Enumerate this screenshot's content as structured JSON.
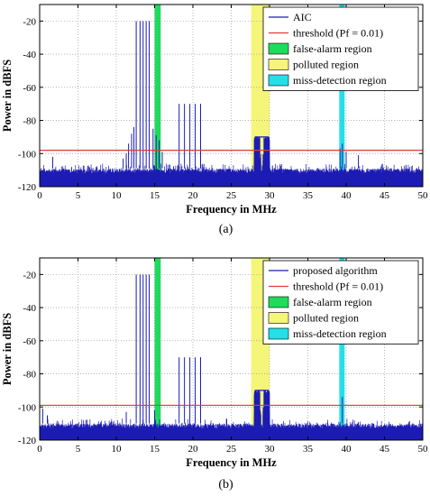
{
  "chart_data": [
    {
      "type": "line",
      "caption": "(a)",
      "xlabel": "Frequency in MHz",
      "ylabel": "Power in dBFS",
      "xlim": [
        0,
        50
      ],
      "ylim": [
        -120,
        -10
      ],
      "xticks": [
        0,
        5,
        10,
        15,
        20,
        25,
        30,
        35,
        40,
        45,
        50
      ],
      "yticks": [
        -120,
        -100,
        -80,
        -60,
        -40,
        -20
      ],
      "xtick_labels": [
        "0",
        "5",
        "10",
        "15",
        "20",
        "25",
        "30",
        "35",
        "40",
        "45",
        "50"
      ],
      "ytick_labels": [
        "-120",
        "-100",
        "-80",
        "-60",
        "-40",
        "-20"
      ],
      "grid": true,
      "legend_position": "top-right",
      "legend": [
        {
          "label": "AIC",
          "kind": "line",
          "color": "#1c1cb4"
        },
        {
          "label": "threshold (Pf = 0.01)",
          "kind": "line",
          "color": "#e03a3a"
        },
        {
          "label": "false-alarm region",
          "kind": "patch",
          "color": "#1fdb5c"
        },
        {
          "label": "polluted region",
          "kind": "patch",
          "color": "#f5f57a"
        },
        {
          "label": "miss-detection region",
          "kind": "patch",
          "color": "#22e0e8"
        }
      ],
      "threshold": -98,
      "noise_floor": [
        -120,
        -109
      ],
      "regions": [
        {
          "name": "false-alarm",
          "x": [
            15.0,
            15.8
          ],
          "color": "#1fdb5c"
        },
        {
          "name": "polluted",
          "x": [
            27.6,
            30.0
          ],
          "color": "#f5f57a"
        },
        {
          "name": "miss-detection",
          "x": [
            39.1,
            39.8
          ],
          "color": "#22e0e8"
        }
      ],
      "series": [
        {
          "name": "AIC",
          "color": "#1c1cb4",
          "spikes": [
            {
              "x": 1.7,
              "y": -102
            },
            {
              "x": 10.9,
              "y": -103
            },
            {
              "x": 11.3,
              "y": -100
            },
            {
              "x": 11.6,
              "y": -94
            },
            {
              "x": 12.0,
              "y": -88
            },
            {
              "x": 12.3,
              "y": -84
            },
            {
              "x": 12.6,
              "y": -20
            },
            {
              "x": 13.1,
              "y": -20
            },
            {
              "x": 13.5,
              "y": -20
            },
            {
              "x": 13.9,
              "y": -20
            },
            {
              "x": 14.3,
              "y": -20
            },
            {
              "x": 14.8,
              "y": -85
            },
            {
              "x": 15.2,
              "y": -89
            },
            {
              "x": 15.6,
              "y": -92
            },
            {
              "x": 16.0,
              "y": -99
            },
            {
              "x": 18.2,
              "y": -70
            },
            {
              "x": 18.9,
              "y": -70
            },
            {
              "x": 19.6,
              "y": -70
            },
            {
              "x": 20.3,
              "y": -70
            },
            {
              "x": 21.0,
              "y": -70
            },
            {
              "x": 39.2,
              "y": -97
            },
            {
              "x": 39.5,
              "y": -94
            },
            {
              "x": 40.0,
              "y": -99
            },
            {
              "x": 41.6,
              "y": -101
            }
          ],
          "hump": {
            "x": [
              28.0,
              30.0
            ],
            "y": -90,
            "dip_x": 29.0,
            "dip_y": -117
          }
        }
      ]
    },
    {
      "type": "line",
      "caption": "(b)",
      "xlabel": "Frequency in MHz",
      "ylabel": "Power in dBFS",
      "xlim": [
        0,
        50
      ],
      "ylim": [
        -120,
        -10
      ],
      "xticks": [
        0,
        5,
        10,
        15,
        20,
        25,
        30,
        35,
        40,
        45,
        50
      ],
      "yticks": [
        -120,
        -100,
        -80,
        -60,
        -40,
        -20
      ],
      "xtick_labels": [
        "0",
        "5",
        "10",
        "15",
        "20",
        "25",
        "30",
        "35",
        "40",
        "45",
        "50"
      ],
      "ytick_labels": [
        "-120",
        "-100",
        "-80",
        "-60",
        "-40",
        "-20"
      ],
      "grid": true,
      "legend_position": "top-right",
      "legend": [
        {
          "label": "proposed algorithm",
          "kind": "line",
          "color": "#1c1cb4"
        },
        {
          "label": "threshold (Pf = 0.01)",
          "kind": "line",
          "color": "#e03a3a"
        },
        {
          "label": "false-alarm region",
          "kind": "patch",
          "color": "#1fdb5c"
        },
        {
          "label": "polluted region",
          "kind": "patch",
          "color": "#f5f57a"
        },
        {
          "label": "miss-detection region",
          "kind": "patch",
          "color": "#22e0e8"
        }
      ],
      "threshold": -99,
      "noise_floor": [
        -120,
        -110
      ],
      "regions": [
        {
          "name": "false-alarm",
          "x": [
            15.0,
            15.8
          ],
          "color": "#1fdb5c"
        },
        {
          "name": "polluted",
          "x": [
            27.6,
            30.0
          ],
          "color": "#f5f57a"
        },
        {
          "name": "miss-detection",
          "x": [
            39.1,
            39.8
          ],
          "color": "#22e0e8"
        }
      ],
      "series": [
        {
          "name": "proposed algorithm",
          "color": "#1c1cb4",
          "spikes": [
            {
              "x": 0.4,
              "y": -101
            },
            {
              "x": 1.0,
              "y": -105
            },
            {
              "x": 11.3,
              "y": -103
            },
            {
              "x": 12.6,
              "y": -20
            },
            {
              "x": 13.1,
              "y": -20
            },
            {
              "x": 13.5,
              "y": -20
            },
            {
              "x": 13.9,
              "y": -20
            },
            {
              "x": 14.3,
              "y": -20
            },
            {
              "x": 15.0,
              "y": -102
            },
            {
              "x": 18.2,
              "y": -70
            },
            {
              "x": 18.9,
              "y": -70
            },
            {
              "x": 19.6,
              "y": -70
            },
            {
              "x": 20.3,
              "y": -70
            },
            {
              "x": 21.0,
              "y": -70
            },
            {
              "x": 39.5,
              "y": -94
            }
          ],
          "hump": {
            "x": [
              28.0,
              30.0
            ],
            "y": -90,
            "dip_x": 29.0,
            "dip_y": -117
          }
        }
      ]
    }
  ]
}
